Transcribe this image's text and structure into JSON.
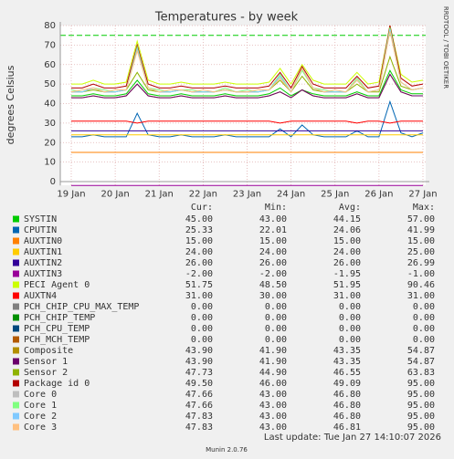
{
  "chart_data": {
    "type": "line",
    "title": "Temperatures - by week",
    "y_label": "degrees Celsius",
    "side_text": "RRDTOOL / TOBI OETIKER",
    "footer": "Last update: Tue Jan 27 14:10:07 2026",
    "version": "Munin 2.0.76",
    "categories": [
      "19 Jan",
      null,
      null,
      null,
      "20 Jan",
      null,
      null,
      null,
      "21 Jan",
      null,
      null,
      null,
      "22 Jan",
      null,
      null,
      null,
      "23 Jan",
      null,
      null,
      null,
      "24 Jan",
      null,
      null,
      null,
      "25 Jan",
      null,
      null,
      null,
      "26 Jan",
      null,
      null,
      null,
      "27 Jan"
    ],
    "ylim": [
      -2,
      80
    ],
    "yticks": [
      0,
      10,
      20,
      30,
      40,
      50,
      60,
      70,
      80
    ],
    "grid": true,
    "thresholds": [
      75
    ],
    "threshold_color": "#00cc00",
    "stat_columns": [
      "Cur:",
      "Min:",
      "Avg:",
      "Max:"
    ],
    "series": [
      {
        "name": "SYSTIN",
        "color": "#00cc00",
        "stats": [
          "45.00",
          "43.00",
          "44.15",
          "57.00"
        ],
        "values": [
          44,
          44,
          45,
          44,
          44,
          45,
          52,
          45,
          44,
          44,
          45,
          44,
          44,
          44,
          45,
          44,
          44,
          44,
          45,
          48,
          44,
          47,
          45,
          44,
          44,
          44,
          46,
          44,
          44,
          57,
          47,
          45,
          45
        ]
      },
      {
        "name": "CPUTIN",
        "color": "#0066b3",
        "stats": [
          "25.33",
          "22.01",
          "24.06",
          "41.99"
        ],
        "values": [
          23,
          23,
          24,
          23,
          23,
          23,
          35,
          24,
          23,
          23,
          24,
          23,
          23,
          23,
          24,
          23,
          23,
          23,
          23,
          27,
          23,
          29,
          24,
          23,
          23,
          23,
          26,
          23,
          23,
          41,
          25,
          23,
          25
        ]
      },
      {
        "name": "AUXTIN0",
        "color": "#ff8000",
        "stats": [
          "15.00",
          "15.00",
          "15.00",
          "15.00"
        ],
        "values": [
          15,
          15,
          15,
          15,
          15,
          15,
          15,
          15,
          15,
          15,
          15,
          15,
          15,
          15,
          15,
          15,
          15,
          15,
          15,
          15,
          15,
          15,
          15,
          15,
          15,
          15,
          15,
          15,
          15,
          15,
          15,
          15,
          15
        ]
      },
      {
        "name": "AUXTIN1",
        "color": "#ffcc00",
        "stats": [
          "24.00",
          "24.00",
          "24.00",
          "25.00"
        ],
        "values": [
          24,
          24,
          24,
          24,
          24,
          24,
          24,
          24,
          24,
          24,
          24,
          24,
          24,
          24,
          24,
          24,
          24,
          24,
          24,
          24,
          24,
          24,
          24,
          24,
          24,
          24,
          24,
          24,
          24,
          24,
          24,
          24,
          24
        ]
      },
      {
        "name": "AUXTIN2",
        "color": "#330099",
        "stats": [
          "26.00",
          "26.00",
          "26.00",
          "26.99"
        ],
        "values": [
          26,
          26,
          26,
          26,
          26,
          26,
          26,
          26,
          26,
          26,
          26,
          26,
          26,
          26,
          26,
          26,
          26,
          26,
          26,
          26,
          26,
          26,
          26,
          26,
          26,
          26,
          26,
          26,
          26,
          26,
          26,
          26,
          26
        ]
      },
      {
        "name": "AUXTIN3",
        "color": "#990099",
        "stats": [
          "-2.00",
          "-2.00",
          "-1.95",
          "-1.00"
        ],
        "values": [
          -2,
          -2,
          -2,
          -2,
          -2,
          -2,
          -2,
          -2,
          -2,
          -2,
          -2,
          -2,
          -2,
          -2,
          -2,
          -2,
          -2,
          -2,
          -2,
          -2,
          -2,
          -2,
          -2,
          -2,
          -2,
          -2,
          -2,
          -2,
          -2,
          -2,
          -2,
          -2,
          -2
        ]
      },
      {
        "name": "PECI Agent 0",
        "color": "#ccff00",
        "stats": [
          "51.75",
          "48.50",
          "51.95",
          "90.46"
        ],
        "values": [
          50,
          50,
          52,
          50,
          50,
          51,
          72,
          52,
          50,
          50,
          51,
          50,
          50,
          50,
          51,
          50,
          50,
          50,
          51,
          58,
          50,
          60,
          52,
          50,
          50,
          50,
          56,
          50,
          51,
          80,
          55,
          51,
          52
        ]
      },
      {
        "name": "AUXTN4",
        "color": "#ff0000",
        "stats": [
          "31.00",
          "30.00",
          "31.00",
          "31.00"
        ],
        "values": [
          31,
          31,
          31,
          31,
          31,
          31,
          30,
          31,
          31,
          31,
          31,
          31,
          31,
          31,
          31,
          31,
          31,
          31,
          31,
          30,
          31,
          31,
          31,
          31,
          31,
          31,
          30,
          31,
          31,
          30,
          31,
          31,
          31
        ]
      },
      {
        "name": "PCH_CHIP_CPU_MAX_TEMP",
        "color": "#808080",
        "stats": [
          "0.00",
          "0.00",
          "0.00",
          "0.00"
        ],
        "values": [
          0,
          0,
          0,
          0,
          0,
          0,
          0,
          0,
          0,
          0,
          0,
          0,
          0,
          0,
          0,
          0,
          0,
          0,
          0,
          0,
          0,
          0,
          0,
          0,
          0,
          0,
          0,
          0,
          0,
          0,
          0,
          0,
          0
        ]
      },
      {
        "name": "PCH_CHIP_TEMP",
        "color": "#008f00",
        "stats": [
          "0.00",
          "0.00",
          "0.00",
          "0.00"
        ],
        "values": [
          0,
          0,
          0,
          0,
          0,
          0,
          0,
          0,
          0,
          0,
          0,
          0,
          0,
          0,
          0,
          0,
          0,
          0,
          0,
          0,
          0,
          0,
          0,
          0,
          0,
          0,
          0,
          0,
          0,
          0,
          0,
          0,
          0
        ]
      },
      {
        "name": "PCH_CPU_TEMP",
        "color": "#00487d",
        "stats": [
          "0.00",
          "0.00",
          "0.00",
          "0.00"
        ],
        "values": [
          0,
          0,
          0,
          0,
          0,
          0,
          0,
          0,
          0,
          0,
          0,
          0,
          0,
          0,
          0,
          0,
          0,
          0,
          0,
          0,
          0,
          0,
          0,
          0,
          0,
          0,
          0,
          0,
          0,
          0,
          0,
          0,
          0
        ]
      },
      {
        "name": "PCH_MCH_TEMP",
        "color": "#b35a00",
        "stats": [
          "0.00",
          "0.00",
          "0.00",
          "0.00"
        ],
        "values": [
          0,
          0,
          0,
          0,
          0,
          0,
          0,
          0,
          0,
          0,
          0,
          0,
          0,
          0,
          0,
          0,
          0,
          0,
          0,
          0,
          0,
          0,
          0,
          0,
          0,
          0,
          0,
          0,
          0,
          0,
          0,
          0,
          0
        ]
      },
      {
        "name": "Composite",
        "color": "#b38f00",
        "stats": [
          "43.90",
          "41.90",
          "43.35",
          "54.87"
        ],
        "values": [
          43,
          43,
          44,
          43,
          43,
          44,
          50,
          44,
          43,
          43,
          44,
          43,
          43,
          43,
          44,
          43,
          43,
          43,
          44,
          46,
          43,
          47,
          44,
          43,
          43,
          43,
          45,
          43,
          43,
          55,
          46,
          44,
          44
        ]
      },
      {
        "name": "Sensor 1",
        "color": "#6b006b",
        "stats": [
          "43.90",
          "41.90",
          "43.35",
          "54.87"
        ],
        "values": [
          43,
          43,
          44,
          43,
          43,
          44,
          50,
          44,
          43,
          43,
          44,
          43,
          43,
          43,
          44,
          43,
          43,
          43,
          44,
          46,
          43,
          47,
          44,
          43,
          43,
          43,
          45,
          43,
          43,
          55,
          46,
          44,
          44
        ]
      },
      {
        "name": "Sensor 2",
        "color": "#8fb300",
        "stats": [
          "47.73",
          "44.90",
          "46.55",
          "63.83"
        ],
        "values": [
          46,
          46,
          47,
          46,
          46,
          47,
          56,
          47,
          46,
          46,
          47,
          46,
          46,
          46,
          47,
          46,
          46,
          46,
          47,
          52,
          46,
          54,
          47,
          46,
          46,
          46,
          50,
          46,
          46,
          64,
          49,
          47,
          48
        ]
      },
      {
        "name": "Package id 0",
        "color": "#b30000",
        "stats": [
          "49.50",
          "46.00",
          "49.09",
          "95.00"
        ],
        "values": [
          48,
          48,
          50,
          48,
          48,
          49,
          70,
          50,
          48,
          48,
          49,
          48,
          48,
          48,
          49,
          48,
          48,
          48,
          49,
          56,
          48,
          59,
          50,
          48,
          48,
          48,
          54,
          48,
          49,
          80,
          53,
          49,
          50
        ]
      },
      {
        "name": "Core 0",
        "color": "#bebebe",
        "stats": [
          "47.66",
          "43.00",
          "46.80",
          "95.00"
        ],
        "values": [
          46,
          46,
          48,
          46,
          46,
          47,
          68,
          48,
          46,
          46,
          47,
          46,
          46,
          46,
          47,
          46,
          46,
          46,
          47,
          54,
          46,
          58,
          48,
          46,
          46,
          46,
          52,
          46,
          47,
          78,
          51,
          47,
          48
        ]
      },
      {
        "name": "Core 1",
        "color": "#80ff80",
        "stats": [
          "47.66",
          "43.00",
          "46.80",
          "95.00"
        ],
        "values": [
          47,
          46,
          48,
          47,
          46,
          47,
          69,
          48,
          47,
          46,
          47,
          47,
          46,
          46,
          48,
          46,
          47,
          46,
          47,
          55,
          46,
          57,
          48,
          47,
          46,
          46,
          53,
          46,
          47,
          79,
          51,
          47,
          48
        ]
      },
      {
        "name": "Core 2",
        "color": "#80c9ff",
        "stats": [
          "47.83",
          "43.00",
          "46.80",
          "95.00"
        ],
        "values": [
          46,
          46,
          48,
          46,
          46,
          47,
          68,
          48,
          46,
          46,
          47,
          46,
          46,
          46,
          47,
          46,
          46,
          46,
          47,
          54,
          46,
          58,
          48,
          46,
          46,
          46,
          52,
          46,
          47,
          78,
          51,
          47,
          48
        ]
      },
      {
        "name": "Core 3",
        "color": "#ffc080",
        "stats": [
          "47.83",
          "43.00",
          "46.81",
          "95.00"
        ],
        "values": [
          46,
          47,
          48,
          46,
          47,
          47,
          67,
          48,
          46,
          47,
          47,
          46,
          47,
          46,
          47,
          46,
          46,
          47,
          47,
          53,
          46,
          58,
          48,
          46,
          47,
          46,
          52,
          46,
          47,
          77,
          51,
          47,
          48
        ]
      }
    ]
  }
}
